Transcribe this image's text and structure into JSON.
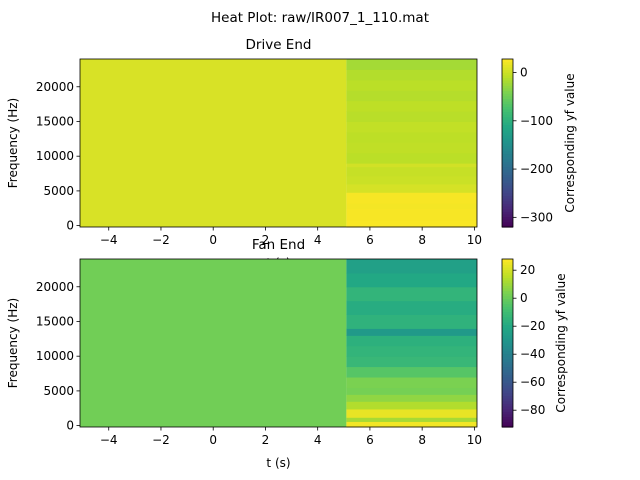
{
  "figure": {
    "suptitle": "Heat Plot: raw/IR007_1_110.mat"
  },
  "chart_data": [
    {
      "type": "heatmap",
      "title": "Drive End",
      "xlabel": "t (s)",
      "ylabel": "Frequency (Hz)",
      "xlim": [
        -5.1,
        10.1
      ],
      "ylim": [
        -200,
        24000
      ],
      "xticks": [
        -4,
        -2,
        0,
        2,
        4,
        6,
        8,
        10
      ],
      "yticks": [
        0,
        5000,
        10000,
        15000,
        20000
      ],
      "colormap": "viridis",
      "colorbar": {
        "label": "Corresponding yf value",
        "vmin": -320,
        "vmax": 28,
        "ticks": [
          -300,
          -200,
          -100,
          0
        ]
      },
      "regions": [
        {
          "t_start": -5.1,
          "t_end": 5.1,
          "value": 8
        }
      ],
      "right_block": {
        "t_start": 5.1,
        "t_end": 10.1
      },
      "right_bands": [
        {
          "f_start": -200,
          "f_end": 800,
          "value": 26
        },
        {
          "f_start": 800,
          "f_end": 2500,
          "value": 25
        },
        {
          "f_start": 2500,
          "f_end": 3200,
          "value": 23
        },
        {
          "f_start": 3200,
          "f_end": 4800,
          "value": 25
        },
        {
          "f_start": 4800,
          "f_end": 6000,
          "value": 6
        },
        {
          "f_start": 6000,
          "f_end": 7200,
          "value": 0
        },
        {
          "f_start": 7200,
          "f_end": 8500,
          "value": -2
        },
        {
          "f_start": 8500,
          "f_end": 9000,
          "value": 4
        },
        {
          "f_start": 9000,
          "f_end": 10500,
          "value": -8
        },
        {
          "f_start": 10500,
          "f_end": 12000,
          "value": -5
        },
        {
          "f_start": 12000,
          "f_end": 13500,
          "value": -7
        },
        {
          "f_start": 13500,
          "f_end": 15000,
          "value": -4
        },
        {
          "f_start": 15000,
          "f_end": 16500,
          "value": -9
        },
        {
          "f_start": 16500,
          "f_end": 18000,
          "value": -6
        },
        {
          "f_start": 18000,
          "f_end": 19500,
          "value": -11
        },
        {
          "f_start": 19500,
          "f_end": 21000,
          "value": -8
        },
        {
          "f_start": 21000,
          "f_end": 22500,
          "value": -12
        },
        {
          "f_start": 22500,
          "f_end": 24000,
          "value": -20
        }
      ]
    },
    {
      "type": "heatmap",
      "title": "Fan End",
      "xlabel": "t (s)",
      "ylabel": "Frequency (Hz)",
      "xlim": [
        -5.1,
        10.1
      ],
      "ylim": [
        -200,
        24000
      ],
      "xticks": [
        -4,
        -2,
        0,
        2,
        4,
        6,
        8,
        10
      ],
      "yticks": [
        0,
        5000,
        10000,
        15000,
        20000
      ],
      "colormap": "viridis",
      "colorbar": {
        "label": "Corresponding yf value",
        "vmin": -92,
        "vmax": 28,
        "ticks": [
          -80,
          -60,
          -40,
          -20,
          0,
          20
        ]
      },
      "regions": [
        {
          "t_start": -5.1,
          "t_end": 5.1,
          "value": 2
        }
      ],
      "right_block": {
        "t_start": 5.1,
        "t_end": 10.1
      },
      "right_bands": [
        {
          "f_start": -200,
          "f_end": 600,
          "value": 26
        },
        {
          "f_start": 600,
          "f_end": 1200,
          "value": 12
        },
        {
          "f_start": 1200,
          "f_end": 2400,
          "value": 24
        },
        {
          "f_start": 2400,
          "f_end": 3500,
          "value": 14
        },
        {
          "f_start": 3500,
          "f_end": 4500,
          "value": 8
        },
        {
          "f_start": 4500,
          "f_end": 5500,
          "value": 3
        },
        {
          "f_start": 5500,
          "f_end": 7000,
          "value": 4
        },
        {
          "f_start": 7000,
          "f_end": 8500,
          "value": -4
        },
        {
          "f_start": 8500,
          "f_end": 10000,
          "value": -12
        },
        {
          "f_start": 10000,
          "f_end": 11500,
          "value": -14
        },
        {
          "f_start": 11500,
          "f_end": 13000,
          "value": -16
        },
        {
          "f_start": 13000,
          "f_end": 14000,
          "value": -28
        },
        {
          "f_start": 14000,
          "f_end": 16000,
          "value": -15
        },
        {
          "f_start": 16000,
          "f_end": 18000,
          "value": -18
        },
        {
          "f_start": 18000,
          "f_end": 20000,
          "value": -14
        },
        {
          "f_start": 20000,
          "f_end": 22000,
          "value": -20
        },
        {
          "f_start": 22000,
          "f_end": 24000,
          "value": -24
        }
      ]
    }
  ]
}
